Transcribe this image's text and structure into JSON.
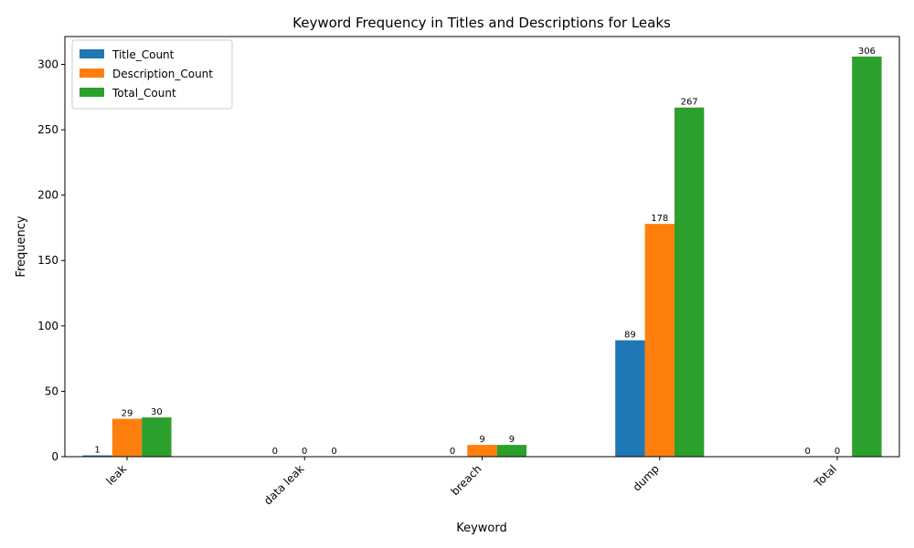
{
  "chart_data": {
    "type": "bar",
    "title": "Keyword Frequency in Titles and Descriptions for Leaks",
    "xlabel": "Keyword",
    "ylabel": "Frequency",
    "categories": [
      "leak",
      "data leak",
      "breach",
      "dump",
      "Total"
    ],
    "series": [
      {
        "name": "Title_Count",
        "color": "#1f77b4",
        "values": [
          1,
          0,
          0,
          89,
          0
        ]
      },
      {
        "name": "Description_Count",
        "color": "#ff7f0e",
        "values": [
          29,
          0,
          9,
          178,
          0
        ]
      },
      {
        "name": "Total_Count",
        "color": "#2ca02c",
        "values": [
          30,
          0,
          9,
          267,
          306
        ]
      }
    ],
    "data_labels": [
      [
        "1",
        "0",
        "0",
        "89",
        "0"
      ],
      [
        "29",
        "0",
        "9",
        "178",
        "0"
      ],
      [
        "30",
        "0",
        "9",
        "267",
        "306"
      ]
    ],
    "ylim": [
      0,
      321.3
    ],
    "yticks": [
      0,
      50,
      100,
      150,
      200,
      250,
      300
    ],
    "legend_position": "top-left",
    "grid": false
  }
}
